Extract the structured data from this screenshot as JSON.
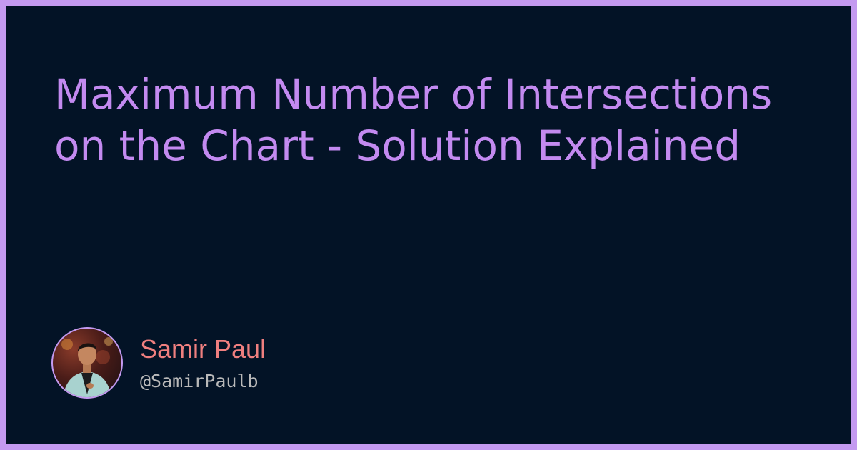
{
  "title": "Maximum Number of Intersections on the Chart - Solution Explained",
  "author": {
    "name": "Samir Paul",
    "handle": "@SamirPaulb"
  },
  "colors": {
    "border": "#c49af0",
    "background": "#031326",
    "title": "#c38af0",
    "name": "#ef7f7f",
    "handle": "#b9b9b9"
  },
  "icons": {
    "avatar": "author-avatar-photo"
  }
}
